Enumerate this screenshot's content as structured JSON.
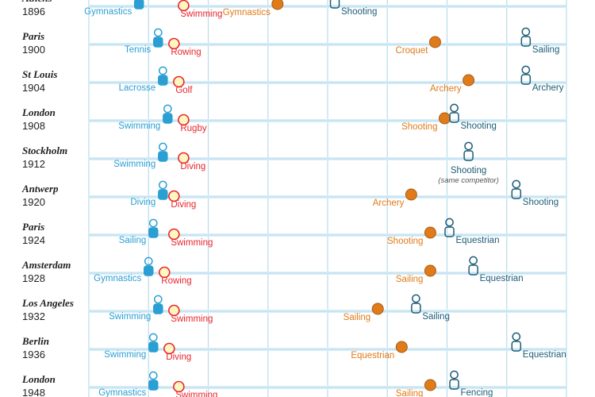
{
  "chart_data": {
    "type": "scatter",
    "title": "",
    "xlabel": "",
    "ylabel": "",
    "colors": {
      "young_female": "#f5a623",
      "young_male": "#e8262d",
      "old_female": "#e07b1a",
      "old_male": "#1d5d77",
      "figure_young": "#2b9fd3",
      "grid": "#b9dcec",
      "row_band": "#d9eef8"
    },
    "series": [
      {
        "name": "",
        "role": "youngest-figure"
      },
      {
        "name": "",
        "role": "youngest-dot"
      },
      {
        "name": "",
        "role": "oldest-dot"
      },
      {
        "name": "",
        "role": "oldest-figure"
      }
    ],
    "rows": [
      {
        "city": "Athens",
        "year": "1896",
        "marks": [
          {
            "kind": "figure-young",
            "x": 0.105,
            "label": "Gymnastics"
          },
          {
            "kind": "dot-young",
            "x": 0.185,
            "label": "Swimming"
          },
          {
            "kind": "dot-old",
            "x": 0.395,
            "label": "Gymnastics"
          },
          {
            "kind": "figure-old",
            "x": 0.515,
            "label": "Shooting"
          }
        ]
      },
      {
        "city": "Paris",
        "year": "1900",
        "marks": [
          {
            "kind": "figure-young",
            "x": 0.145,
            "label": "Tennis"
          },
          {
            "kind": "dot-young",
            "x": 0.165,
            "label": "Rowing"
          },
          {
            "kind": "dot-old",
            "x": 0.725,
            "label": "Croquet"
          },
          {
            "kind": "figure-old",
            "x": 0.915,
            "label": "Sailing"
          }
        ]
      },
      {
        "city": "St Louis",
        "year": "1904",
        "marks": [
          {
            "kind": "figure-young",
            "x": 0.155,
            "label": "Lacrosse"
          },
          {
            "kind": "dot-young",
            "x": 0.175,
            "label": "Golf"
          },
          {
            "kind": "dot-old",
            "x": 0.795,
            "label": "Archery"
          },
          {
            "kind": "figure-old",
            "x": 0.915,
            "label": "Archery"
          }
        ]
      },
      {
        "city": "London",
        "year": "1908",
        "marks": [
          {
            "kind": "figure-young",
            "x": 0.165,
            "label": "Swimming"
          },
          {
            "kind": "dot-young",
            "x": 0.185,
            "label": "Rugby"
          },
          {
            "kind": "dot-old",
            "x": 0.745,
            "label": "Shooting"
          },
          {
            "kind": "figure-old",
            "x": 0.765,
            "label": "Shooting"
          }
        ]
      },
      {
        "city": "Stockholm",
        "year": "1912",
        "marks": [
          {
            "kind": "figure-young",
            "x": 0.155,
            "label": "Swimming"
          },
          {
            "kind": "dot-young",
            "x": 0.185,
            "label": "Diving"
          },
          {
            "kind": "figure-old",
            "x": 0.795,
            "label": "Shooting",
            "note": "(same competitor)"
          }
        ]
      },
      {
        "city": "Antwerp",
        "year": "1920",
        "marks": [
          {
            "kind": "figure-young",
            "x": 0.155,
            "label": "Diving"
          },
          {
            "kind": "dot-young",
            "x": 0.165,
            "label": "Diving"
          },
          {
            "kind": "dot-old",
            "x": 0.675,
            "label": "Archery"
          },
          {
            "kind": "figure-old",
            "x": 0.895,
            "label": "Shooting"
          }
        ]
      },
      {
        "city": "Paris",
        "year": "1924",
        "marks": [
          {
            "kind": "figure-young",
            "x": 0.135,
            "label": "Sailing"
          },
          {
            "kind": "dot-young",
            "x": 0.165,
            "label": "Swimming"
          },
          {
            "kind": "dot-old",
            "x": 0.715,
            "label": "Shooting"
          },
          {
            "kind": "figure-old",
            "x": 0.755,
            "label": "Equestrian"
          }
        ]
      },
      {
        "city": "Amsterdam",
        "year": "1928",
        "marks": [
          {
            "kind": "figure-young",
            "x": 0.125,
            "label": "Gymnastics"
          },
          {
            "kind": "dot-young",
            "x": 0.145,
            "label": "Rowing"
          },
          {
            "kind": "dot-old",
            "x": 0.715,
            "label": "Sailing"
          },
          {
            "kind": "figure-old",
            "x": 0.805,
            "label": "Equestrian"
          }
        ]
      },
      {
        "city": "Los Angeles",
        "year": "1932",
        "marks": [
          {
            "kind": "figure-young",
            "x": 0.145,
            "label": "Swimming"
          },
          {
            "kind": "dot-young",
            "x": 0.165,
            "label": "Swimming"
          },
          {
            "kind": "dot-old",
            "x": 0.605,
            "label": "Sailing"
          },
          {
            "kind": "figure-old",
            "x": 0.685,
            "label": "Sailing"
          }
        ]
      },
      {
        "city": "Berlin",
        "year": "1936",
        "marks": [
          {
            "kind": "figure-young",
            "x": 0.135,
            "label": "Swimming"
          },
          {
            "kind": "dot-young",
            "x": 0.155,
            "label": "Diving"
          },
          {
            "kind": "dot-old",
            "x": 0.655,
            "label": "Equestrian"
          },
          {
            "kind": "figure-old",
            "x": 0.895,
            "label": "Equestrian"
          }
        ]
      },
      {
        "city": "London",
        "year": "1948",
        "marks": [
          {
            "kind": "figure-young",
            "x": 0.135,
            "label": "Gymnastics"
          },
          {
            "kind": "dot-young",
            "x": 0.175,
            "label": "Swimming"
          },
          {
            "kind": "dot-old",
            "x": 0.715,
            "label": "Sailing"
          },
          {
            "kind": "figure-old",
            "x": 0.765,
            "label": "Fencing"
          }
        ]
      }
    ]
  }
}
